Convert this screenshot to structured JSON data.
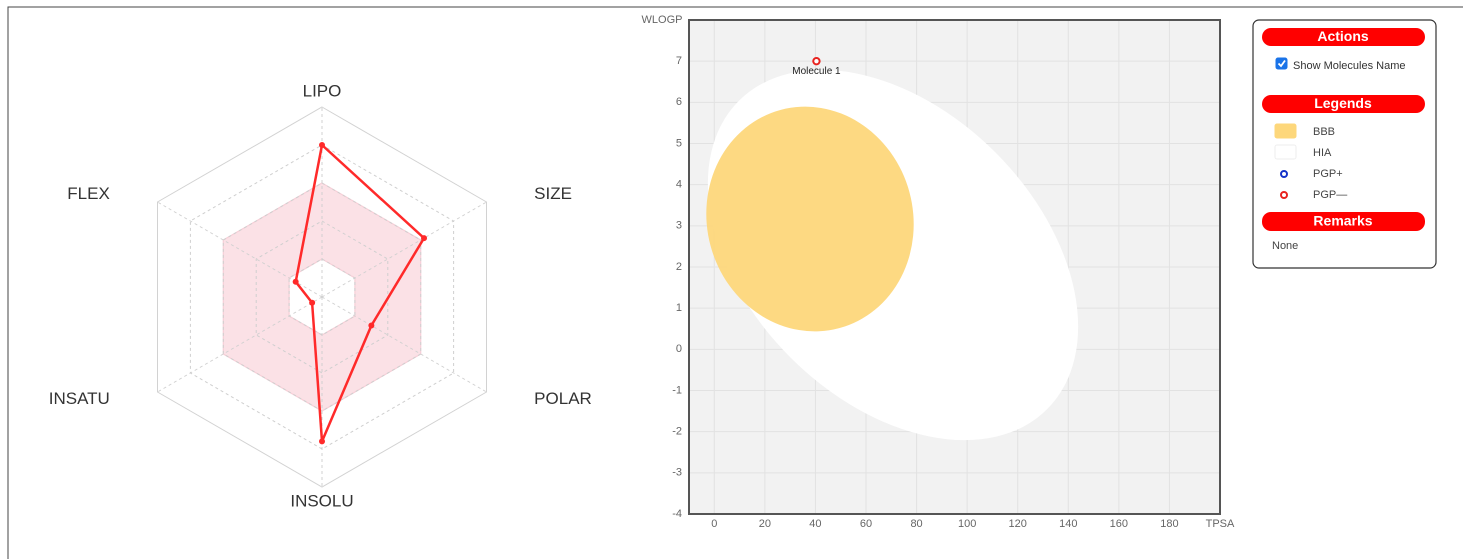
{
  "chart_data": [
    {
      "type": "radar",
      "categories": [
        "LIPO",
        "SIZE",
        "POLAR",
        "INSOLU",
        "INSATU",
        "FLEX"
      ],
      "values": [
        4.0,
        3.1,
        1.5,
        3.8,
        0.3,
        0.8
      ],
      "color": "#ff2a2a",
      "rlim": [
        0,
        5
      ],
      "rticks": [
        1,
        2,
        3,
        4,
        5
      ],
      "optimal_range": [
        1,
        3
      ],
      "optimal_color": "#f9c9d3"
    },
    {
      "type": "scatter",
      "xlabel": "TPSA",
      "ylabel": "WLOGP",
      "xlim": [
        -10,
        200
      ],
      "ylim": [
        -4,
        8
      ],
      "xticks": [
        0,
        20,
        40,
        60,
        80,
        100,
        120,
        140,
        160,
        180
      ],
      "yticks": [
        -4,
        -3,
        -2,
        -1,
        0,
        1,
        2,
        3,
        4,
        5,
        6,
        7
      ],
      "grid": true,
      "series": [
        {
          "name": "Molecule 1",
          "color": "#e8231f",
          "x": [
            40.4
          ],
          "values": [
            7.0
          ]
        }
      ]
    }
  ],
  "panel": {
    "actions_title": "Actions",
    "show_names_label": "Show Molecules Name",
    "show_names": true,
    "legends_title": "Legends",
    "legends": [
      {
        "name": "BBB",
        "color": "#fdd77b",
        "shape": "rect"
      },
      {
        "name": "HIA",
        "color": "#ffffff",
        "shape": "rect"
      },
      {
        "name": "PGP+",
        "color": "#1533c9",
        "shape": "ring"
      },
      {
        "name": "PGP—",
        "color": "#e8231f",
        "shape": "ring"
      }
    ],
    "remarks_title": "Remarks",
    "remarks": "None"
  }
}
